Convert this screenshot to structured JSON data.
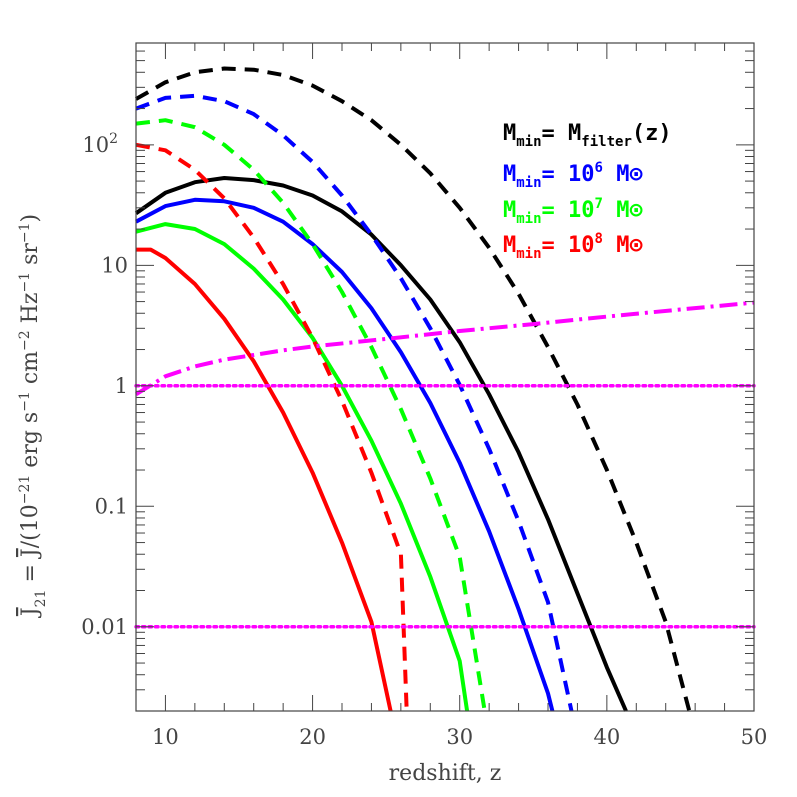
{
  "chart_data": {
    "type": "line",
    "xlabel": "redshift, z",
    "ylabel_parts": {
      "jbar": "J",
      "sub": "21",
      "mid": " = ",
      "jbar2": "J",
      "rest": "/(10",
      "exp1": "−21",
      "unit1": " erg s",
      "exp2": "−1",
      "unit2": " cm",
      "exp3": "−2",
      "unit3": " Hz",
      "exp4": "−1",
      "unit4": " sr",
      "exp5": "−1",
      "close": ")"
    },
    "xlim": [
      8,
      50
    ],
    "ylim": [
      0.002,
      700
    ],
    "y_scale": "log",
    "x_ticks": [
      {
        "value": 10,
        "label": "10"
      },
      {
        "value": 20,
        "label": "20"
      },
      {
        "value": 30,
        "label": "30"
      },
      {
        "value": 40,
        "label": "40"
      },
      {
        "value": 50,
        "label": "50"
      }
    ],
    "y_ticks": [
      {
        "value": 0.01,
        "label": "0.01"
      },
      {
        "value": 0.1,
        "label": "0.1"
      },
      {
        "value": 1,
        "label": "1"
      },
      {
        "value": 10,
        "label": "10"
      },
      {
        "value": 100,
        "label": "10",
        "sup": "2"
      }
    ],
    "series": [
      {
        "id": "black-solid",
        "color": "#000000",
        "dash": "solid",
        "points": [
          [
            8,
            27
          ],
          [
            10,
            40
          ],
          [
            12,
            49
          ],
          [
            14,
            53
          ],
          [
            16,
            51
          ],
          [
            18,
            46
          ],
          [
            20,
            38
          ],
          [
            22,
            28
          ],
          [
            24,
            18
          ],
          [
            26,
            10
          ],
          [
            28,
            5.2
          ],
          [
            30,
            2.3
          ],
          [
            32,
            0.85
          ],
          [
            34,
            0.28
          ],
          [
            36,
            0.078
          ],
          [
            38,
            0.019
          ],
          [
            40,
            0.0046
          ],
          [
            41.3,
            0.002
          ]
        ]
      },
      {
        "id": "black-dashed",
        "color": "#000000",
        "dash": "dashed",
        "points": [
          [
            8,
            240
          ],
          [
            10,
            330
          ],
          [
            12,
            400
          ],
          [
            14,
            430
          ],
          [
            16,
            420
          ],
          [
            18,
            380
          ],
          [
            20,
            310
          ],
          [
            22,
            230
          ],
          [
            24,
            160
          ],
          [
            26,
            100
          ],
          [
            28,
            58
          ],
          [
            30,
            30
          ],
          [
            32,
            14
          ],
          [
            34,
            5.8
          ],
          [
            36,
            2.1
          ],
          [
            38,
            0.7
          ],
          [
            40,
            0.2
          ],
          [
            42,
            0.05
          ],
          [
            44,
            0.011
          ],
          [
            45.6,
            0.002
          ]
        ]
      },
      {
        "id": "blue-solid",
        "color": "#0000ff",
        "dash": "solid",
        "points": [
          [
            8,
            23
          ],
          [
            10,
            31
          ],
          [
            12,
            35
          ],
          [
            14,
            34
          ],
          [
            16,
            30
          ],
          [
            18,
            23
          ],
          [
            20,
            15
          ],
          [
            22,
            8.8
          ],
          [
            24,
            4.4
          ],
          [
            26,
            1.9
          ],
          [
            28,
            0.72
          ],
          [
            30,
            0.23
          ],
          [
            32,
            0.062
          ],
          [
            34,
            0.014
          ],
          [
            36,
            0.0028
          ],
          [
            36.3,
            0.002
          ]
        ]
      },
      {
        "id": "blue-dashed",
        "color": "#0000ff",
        "dash": "dashed",
        "points": [
          [
            8,
            200
          ],
          [
            10,
            245
          ],
          [
            12,
            255
          ],
          [
            14,
            230
          ],
          [
            16,
            180
          ],
          [
            18,
            120
          ],
          [
            20,
            72
          ],
          [
            22,
            38
          ],
          [
            24,
            18
          ],
          [
            26,
            7.8
          ],
          [
            28,
            3.0
          ],
          [
            30,
            1.02
          ],
          [
            32,
            0.3
          ],
          [
            34,
            0.075
          ],
          [
            36,
            0.016
          ],
          [
            37.6,
            0.002
          ]
        ]
      },
      {
        "id": "green-solid",
        "color": "#00ff00",
        "dash": "solid",
        "points": [
          [
            8,
            19
          ],
          [
            10,
            22
          ],
          [
            12,
            20
          ],
          [
            14,
            15
          ],
          [
            16,
            9.4
          ],
          [
            18,
            5.2
          ],
          [
            20,
            2.5
          ],
          [
            22,
            1.0
          ],
          [
            24,
            0.35
          ],
          [
            26,
            0.105
          ],
          [
            28,
            0.026
          ],
          [
            30,
            0.0052
          ],
          [
            30.5,
            0.002
          ]
        ]
      },
      {
        "id": "green-dashed",
        "color": "#00ff00",
        "dash": "dashed",
        "points": [
          [
            8,
            150
          ],
          [
            10,
            160
          ],
          [
            12,
            140
          ],
          [
            14,
            100
          ],
          [
            16,
            62
          ],
          [
            18,
            33
          ],
          [
            20,
            15
          ],
          [
            22,
            6.0
          ],
          [
            24,
            2.1
          ],
          [
            26,
            0.64
          ],
          [
            28,
            0.17
          ],
          [
            30,
            0.038
          ],
          [
            31.7,
            0.002
          ]
        ]
      },
      {
        "id": "red-solid",
        "color": "#ff0000",
        "dash": "solid",
        "points": [
          [
            8,
            13.5
          ],
          [
            9,
            13.5
          ],
          [
            10,
            11.5
          ],
          [
            12,
            7.0
          ],
          [
            14,
            3.6
          ],
          [
            16,
            1.6
          ],
          [
            18,
            0.6
          ],
          [
            20,
            0.19
          ],
          [
            22,
            0.05
          ],
          [
            24,
            0.011
          ],
          [
            25.3,
            0.002
          ]
        ]
      },
      {
        "id": "red-dashed",
        "color": "#ff0000",
        "dash": "dashed",
        "points": [
          [
            8,
            100
          ],
          [
            10,
            90
          ],
          [
            12,
            62
          ],
          [
            14,
            36
          ],
          [
            16,
            17
          ],
          [
            18,
            7.0
          ],
          [
            20,
            2.5
          ],
          [
            22,
            0.75
          ],
          [
            24,
            0.19
          ],
          [
            26,
            0.04
          ],
          [
            26.4,
            0.002
          ]
        ]
      },
      {
        "id": "magenta-dashdot",
        "color": "#ff00ff",
        "dash": "dashdot",
        "points": [
          [
            8,
            0.85
          ],
          [
            10,
            1.2
          ],
          [
            12,
            1.45
          ],
          [
            14,
            1.65
          ],
          [
            16,
            1.8
          ],
          [
            18,
            1.97
          ],
          [
            20,
            2.12
          ],
          [
            25,
            2.45
          ],
          [
            30,
            2.85
          ],
          [
            35,
            3.25
          ],
          [
            40,
            3.75
          ],
          [
            45,
            4.3
          ],
          [
            50,
            4.9
          ]
        ]
      },
      {
        "id": "magenta-dotted-1",
        "color": "#ff00ff",
        "dash": "dotted",
        "points": [
          [
            8,
            1.0
          ],
          [
            50,
            1.0
          ]
        ]
      },
      {
        "id": "magenta-dotted-001",
        "color": "#ff00ff",
        "dash": "dotted",
        "points": [
          [
            8,
            0.01
          ],
          [
            50,
            0.01
          ]
        ]
      }
    ],
    "legend": [
      {
        "color": "#000000",
        "m": "M",
        "sub": "min",
        "eq": "=  ",
        "value": "M",
        "value_sub": "filter",
        "value_tail": "(z)",
        "sup": "",
        "unit": ""
      },
      {
        "color": "#0000ff",
        "m": "M",
        "sub": "min",
        "eq": "=  ",
        "value": "10",
        "value_sub": "",
        "value_tail": "",
        "sup": "6",
        "unit": " M⊙"
      },
      {
        "color": "#00ff00",
        "m": "M",
        "sub": "min",
        "eq": "=  ",
        "value": "10",
        "value_sub": "",
        "value_tail": "",
        "sup": "7",
        "unit": " M⊙"
      },
      {
        "color": "#ff0000",
        "m": "M",
        "sub": "min",
        "eq": "=  ",
        "value": "10",
        "value_sub": "",
        "value_tail": "",
        "sup": "8",
        "unit": " M⊙"
      }
    ],
    "legend_position": "top-right"
  }
}
